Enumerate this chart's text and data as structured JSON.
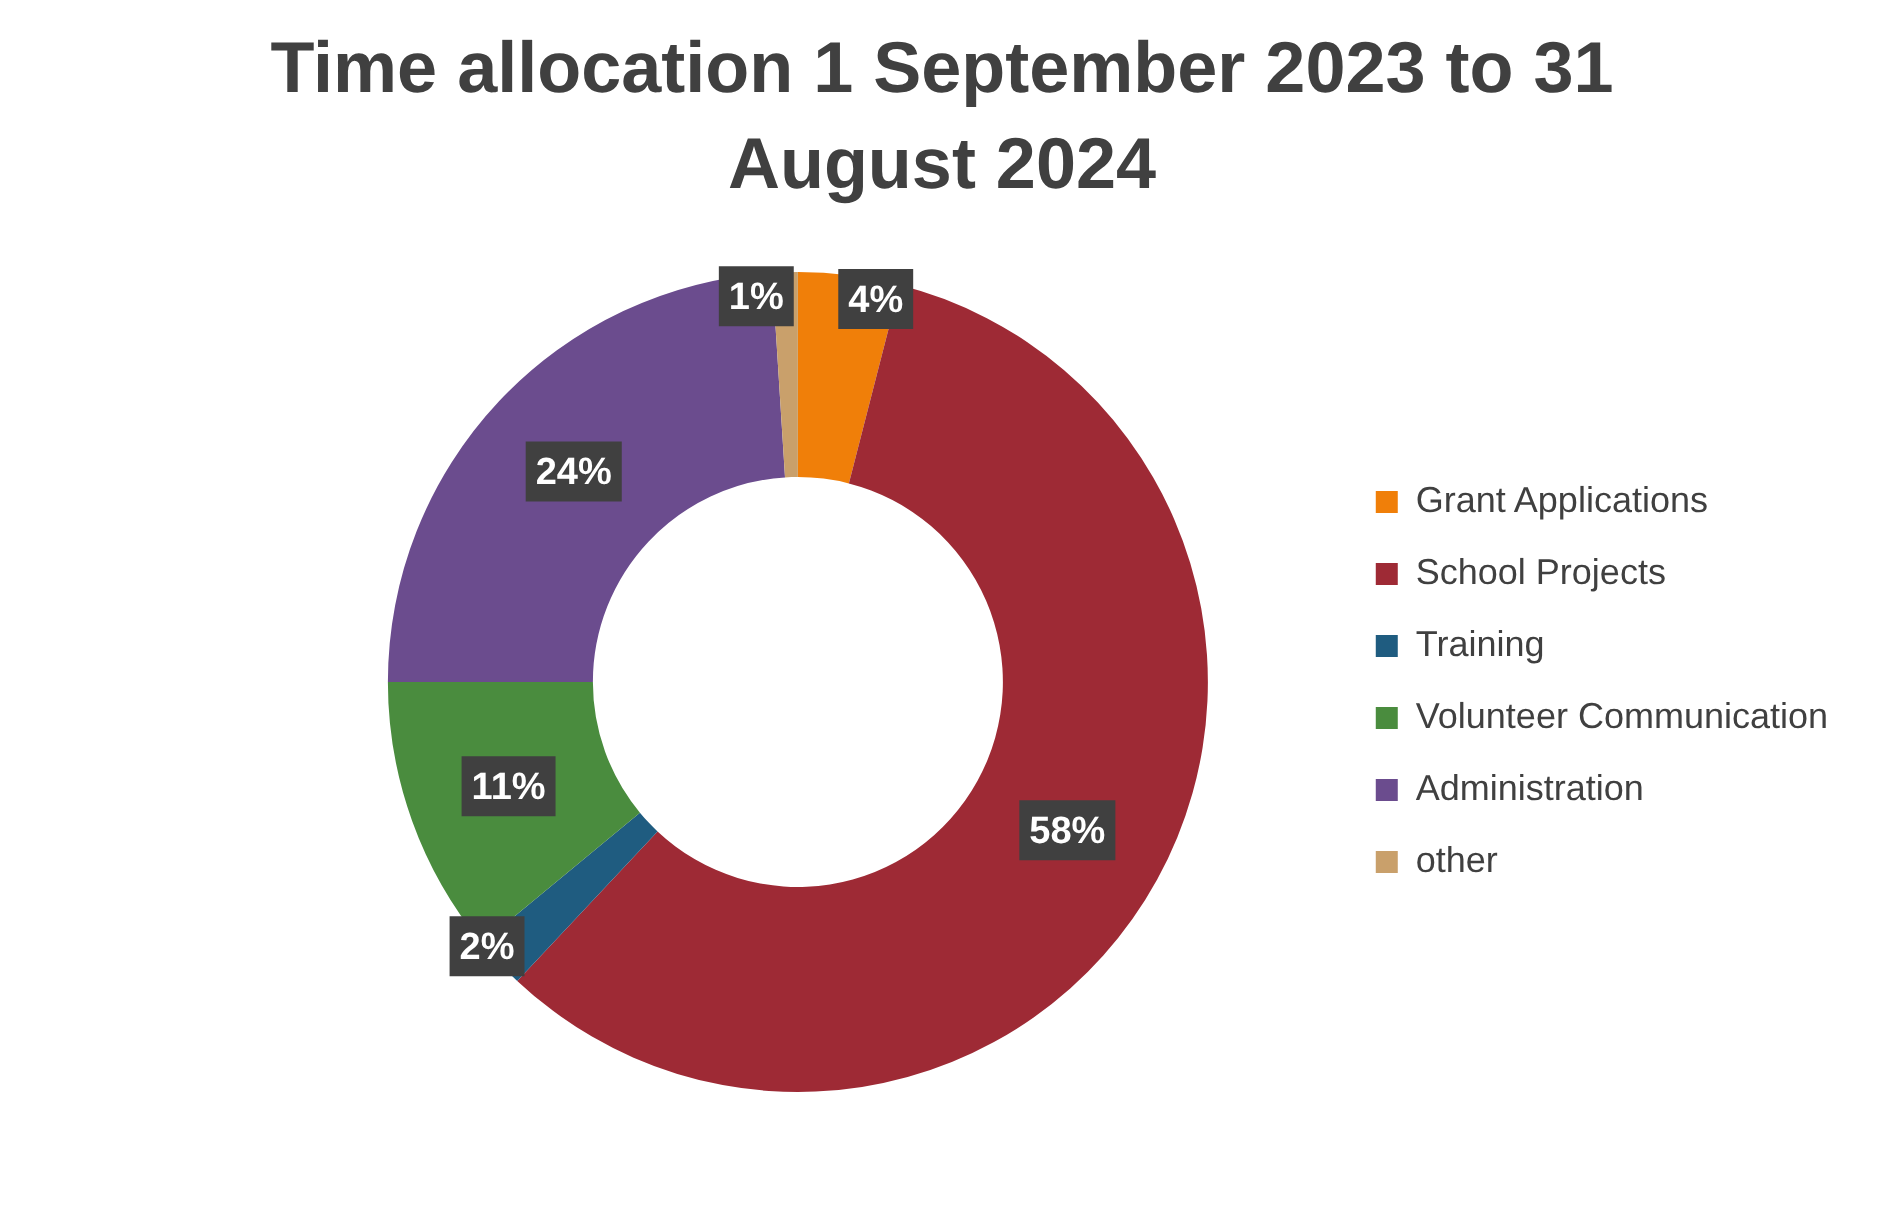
{
  "chart_data": {
    "type": "donut",
    "title": "Time allocation 1 September 2023 to 31 August 2024",
    "categories": [
      "Grant Applications",
      "School Projects",
      "Training",
      "Volunteer Communication",
      "Administration",
      "other"
    ],
    "values": [
      4,
      58,
      2,
      11,
      24,
      1
    ],
    "value_labels": [
      "4%",
      "58%",
      "2%",
      "11%",
      "24%",
      "1%"
    ],
    "colors": [
      "#f07f09",
      "#9e2a35",
      "#1f5c80",
      "#4a8c3e",
      "#6b4c8e",
      "#c9a06b"
    ],
    "legend": "right"
  }
}
